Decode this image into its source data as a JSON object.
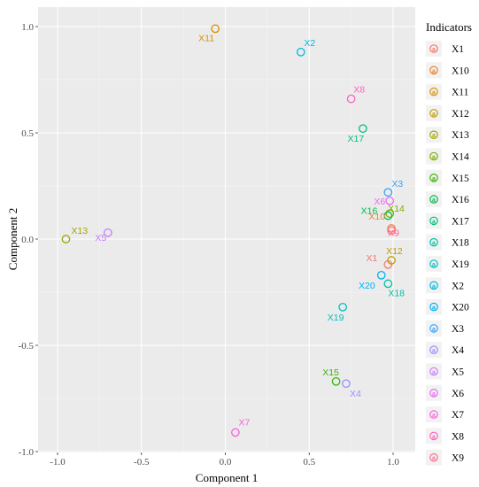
{
  "chart_data": {
    "type": "scatter",
    "xlabel": "Component 1",
    "ylabel": "Component 2",
    "xlim": [
      -1.0,
      1.0
    ],
    "ylim": [
      -1.0,
      1.0
    ],
    "x_ticks": [
      -1.0,
      -0.5,
      0.0,
      0.5,
      1.0
    ],
    "y_ticks": [
      -1.0,
      -0.5,
      0.0,
      0.5,
      1.0
    ],
    "x_tick_labels": [
      "-1.0",
      "-0.5",
      "0.0",
      "0.5",
      "1.0"
    ],
    "y_tick_labels": [
      "-1.0",
      "-0.5",
      "0.0",
      "0.5",
      "1.0"
    ],
    "grid": true,
    "legend_title": "Indicators",
    "legend_position": "right",
    "points": [
      {
        "label": "X1",
        "x": 0.97,
        "y": -0.12,
        "color": "#F8766D"
      },
      {
        "label": "X10",
        "x": 0.99,
        "y": 0.05,
        "color": "#EA8331"
      },
      {
        "label": "X11",
        "x": -0.06,
        "y": 0.99,
        "color": "#D89000"
      },
      {
        "label": "X12",
        "x": 0.99,
        "y": -0.1,
        "color": "#C09B00"
      },
      {
        "label": "X13",
        "x": -0.95,
        "y": 0.0,
        "color": "#A3A500"
      },
      {
        "label": "X14",
        "x": 0.98,
        "y": 0.12,
        "color": "#7CAE00"
      },
      {
        "label": "X15",
        "x": 0.66,
        "y": -0.67,
        "color": "#39B600"
      },
      {
        "label": "X16",
        "x": 0.97,
        "y": 0.11,
        "color": "#00BB4E"
      },
      {
        "label": "X17",
        "x": 0.82,
        "y": 0.52,
        "color": "#00BF7D"
      },
      {
        "label": "X18",
        "x": 0.97,
        "y": -0.21,
        "color": "#00C1A3"
      },
      {
        "label": "X19",
        "x": 0.7,
        "y": -0.32,
        "color": "#00BFC4"
      },
      {
        "label": "X2",
        "x": 0.45,
        "y": 0.88,
        "color": "#00BAE0"
      },
      {
        "label": "X20",
        "x": 0.93,
        "y": -0.17,
        "color": "#00B0F6"
      },
      {
        "label": "X3",
        "x": 0.97,
        "y": 0.22,
        "color": "#35A2FF"
      },
      {
        "label": "X4",
        "x": 0.72,
        "y": -0.68,
        "color": "#9590FF"
      },
      {
        "label": "X5",
        "x": -0.7,
        "y": 0.03,
        "color": "#C77CFF"
      },
      {
        "label": "X6",
        "x": 0.98,
        "y": 0.18,
        "color": "#E76BF3"
      },
      {
        "label": "X7",
        "x": 0.06,
        "y": -0.91,
        "color": "#FA62DB"
      },
      {
        "label": "X8",
        "x": 0.75,
        "y": 0.66,
        "color": "#FF62BC"
      },
      {
        "label": "X9",
        "x": 0.99,
        "y": 0.04,
        "color": "#FF6C91"
      }
    ],
    "legend_entries": [
      "X1",
      "X10",
      "X11",
      "X12",
      "X13",
      "X14",
      "X15",
      "X16",
      "X17",
      "X18",
      "X19",
      "X2",
      "X20",
      "X3",
      "X4",
      "X5",
      "X6",
      "X7",
      "X8",
      "X9"
    ]
  }
}
